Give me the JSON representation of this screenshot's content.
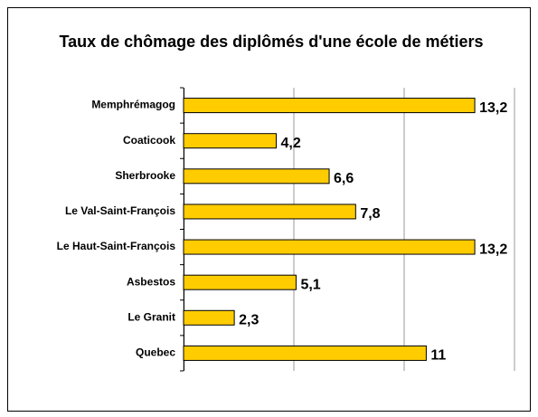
{
  "chart_data": {
    "type": "hbar",
    "title": "Taux de chômage des diplômés d'une école de métiers",
    "categories": [
      "Memphrémagog",
      "Coaticook",
      "Sherbrooke",
      "Le Val-Saint-François",
      "Le Haut-Saint-François",
      "Asbestos",
      "Le Granit",
      "Quebec"
    ],
    "values": [
      13.2,
      4.2,
      6.6,
      7.8,
      13.2,
      5.1,
      2.3,
      11
    ],
    "value_labels": [
      "13,2",
      "4,2",
      "6,6",
      "7,8",
      "13,2",
      "5,1",
      "2,3",
      "11"
    ],
    "color": "#ffcc00",
    "xlim": [
      0,
      15
    ],
    "xticks": [
      0,
      5,
      10,
      15
    ],
    "grid": true
  }
}
